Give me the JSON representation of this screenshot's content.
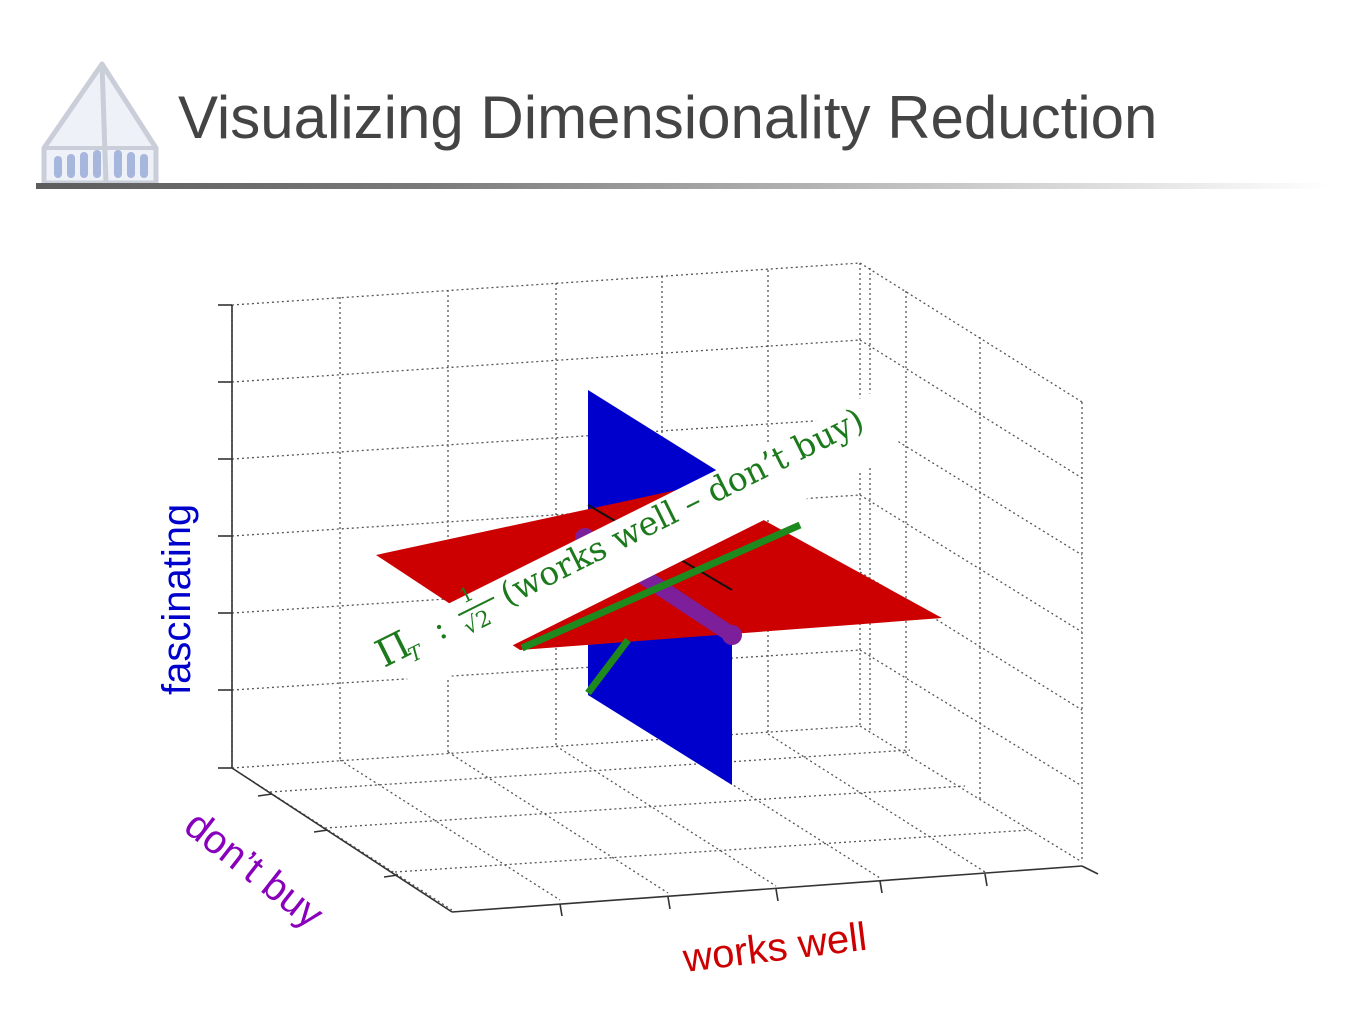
{
  "slide": {
    "title": "Visualizing Dimensionality Reduction"
  },
  "logo": {
    "icon": "chapel-icon",
    "colors": {
      "outline": "#c9ced8",
      "windows": "#9fb0d9"
    }
  },
  "diagram": {
    "axes": {
      "vertical": {
        "label": "fascinating",
        "color": "#0000cc"
      },
      "depth": {
        "label": "don’t buy",
        "color": "#8800bb"
      },
      "horizontal": {
        "label": "works well",
        "color": "#cc0000"
      }
    },
    "planes": {
      "blue_plane_color": "#0000cc",
      "red_plane_color": "#cc0000"
    },
    "lines": {
      "green_line_color": "#1e8a1e",
      "purple_line_color": "#7d1f9a"
    },
    "projection_label": {
      "prefix": "Π",
      "subscript": "T",
      "colon": ":",
      "fraction_numerator": "1",
      "fraction_denominator": "√2",
      "text": "(works well – don’t buy)",
      "color": "#1c7a1c"
    }
  }
}
